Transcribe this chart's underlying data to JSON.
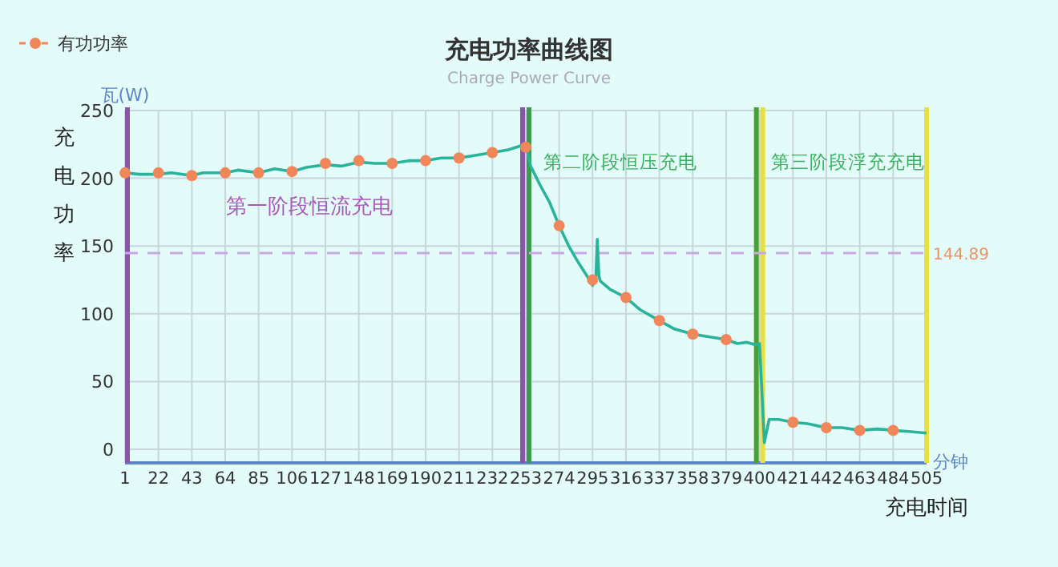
{
  "chart_data": {
    "type": "line",
    "title": "充电功率曲线图",
    "subtitle": "Charge Power Curve",
    "xlabel": "充电时间",
    "ylabel": "充电功率",
    "annotations": [
      "瓦(W)",
      "分钟",
      "第一阶段恒流充电",
      "第二阶段恒压充电",
      "第三阶段浮充充电"
    ],
    "xlim": [
      1,
      505
    ],
    "xticks": [
      1,
      22,
      43,
      64,
      85,
      106,
      127,
      148,
      169,
      190,
      211,
      232,
      253,
      274,
      295,
      316,
      337,
      358,
      379,
      400,
      421,
      442,
      463,
      484,
      505
    ],
    "ylim": [
      -10,
      250
    ],
    "yticks": [
      0,
      50,
      100,
      150,
      200,
      250
    ],
    "grid": true,
    "legend": "top left",
    "series": [
      {
        "type": "line",
        "color": "#2ab39b",
        "marker": "none",
        "x": [
          1,
          10,
          22,
          30,
          43,
          50,
          64,
          72,
          85,
          95,
          106,
          115,
          127,
          137,
          148,
          158,
          169,
          180,
          190,
          200,
          211,
          222,
          232,
          242,
          250,
          253,
          256,
          262,
          268,
          274,
          280,
          286,
          292,
          295,
          297,
          298,
          299,
          300,
          306,
          316,
          325,
          337,
          346,
          358,
          368,
          379,
          386,
          392,
          398,
          400,
          402,
          403,
          406,
          412,
          421,
          430,
          442,
          452,
          463,
          474,
          484,
          495,
          505
        ],
        "values": [
          204,
          203,
          203,
          204,
          202,
          204,
          204,
          206,
          204,
          207,
          205,
          208,
          210,
          209,
          212,
          211,
          211,
          213,
          213,
          215,
          215,
          217,
          219,
          221,
          224,
          225,
          209,
          195,
          182,
          165,
          150,
          138,
          127,
          121,
          127,
          155,
          128,
          124,
          118,
          112,
          103,
          95,
          89,
          85,
          83,
          81,
          78,
          79,
          77,
          78,
          30,
          5,
          22,
          22,
          20,
          19,
          16,
          16,
          14,
          15,
          14,
          13,
          12
        ]
      },
      {
        "type": "scatter",
        "name": "有功功率",
        "color": "#f0875a",
        "marker": "circle",
        "x": [
          1,
          22,
          43,
          64,
          85,
          106,
          127,
          148,
          169,
          190,
          211,
          232,
          253,
          274,
          295,
          316,
          337,
          358,
          379,
          421,
          442,
          463,
          484
        ],
        "values": [
          204,
          204,
          202,
          204,
          204,
          205,
          211,
          213,
          211,
          213,
          215,
          219,
          223,
          165,
          125,
          112,
          95,
          85,
          81,
          20,
          16,
          14,
          14
        ]
      }
    ],
    "ref_lines": [
      {
        "axis": "x",
        "value": 251,
        "color": "#8a55a8"
      },
      {
        "axis": "x",
        "value": 255,
        "color": "#3a9a50"
      },
      {
        "axis": "x",
        "value": 398,
        "color": "#4aa030"
      },
      {
        "axis": "x",
        "value": 402,
        "color": "#e8e040"
      },
      {
        "axis": "x",
        "value": 505,
        "color": "#e8e040"
      },
      {
        "axis": "y",
        "value": 144.89,
        "label": "144.89",
        "color": "#c8a8e0",
        "line_style": "dashed"
      }
    ]
  }
}
